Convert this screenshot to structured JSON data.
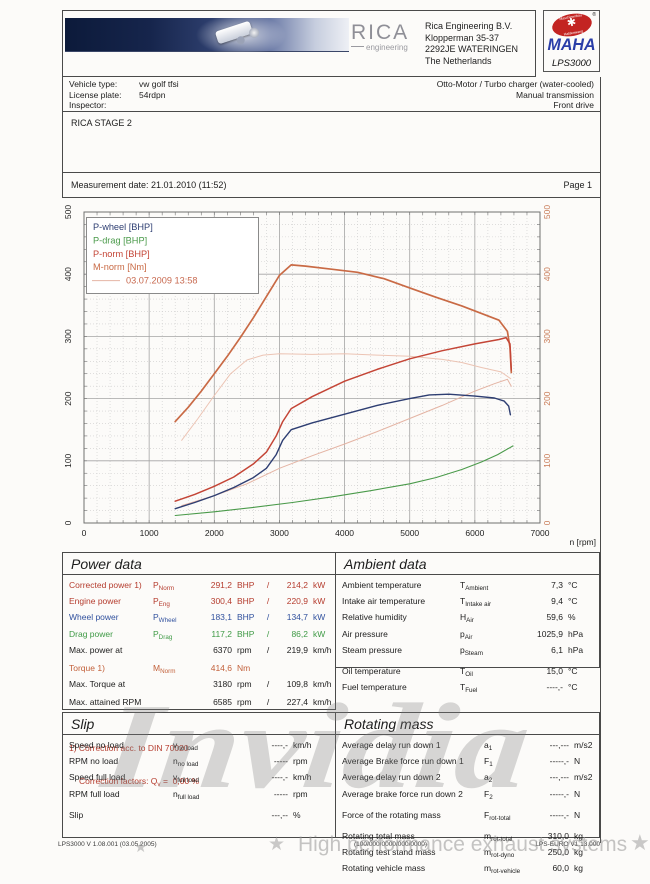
{
  "header": {
    "logo_text": "RICA",
    "logo_sub": "engineering",
    "address_lines": [
      "Rica Engineering B.V.",
      "Klopperman 35-37",
      "2292JE WATERINGEN",
      "The Netherlands"
    ],
    "maha": {
      "brand": "MAHA",
      "model": "LPS3000",
      "seal_top": "Maschinenbau",
      "seal_bottom": "Haldenwang",
      "gear_icon": "gear",
      "registered": "®"
    }
  },
  "vehicle": {
    "fields": [
      {
        "label": "Vehicle type:",
        "value": "vw golf tfsi"
      },
      {
        "label": "License plate:",
        "value": "54rdpn"
      },
      {
        "label": "Inspector:",
        "value": ""
      }
    ],
    "right_lines": [
      "Otto-Motor / Turbo charger (water-cooled)",
      "Manual transmission",
      "Front drive"
    ]
  },
  "stage": "RICA STAGE 2",
  "measurement": {
    "label": "Measurement date: 21.01.2010 (11:52)",
    "page": "Page 1"
  },
  "chart_data": {
    "type": "line",
    "title": "",
    "xlabel": "n [rpm]",
    "xlim": [
      0,
      7000
    ],
    "ylim": [
      0,
      500
    ],
    "x_ticks": [
      0,
      1000,
      2000,
      3000,
      4000,
      5000,
      6000,
      7000
    ],
    "y_ticks": [
      0,
      100,
      200,
      300,
      400,
      500
    ],
    "grid": "on",
    "legend_position": "top-left",
    "right_axis_color": "#c87a56",
    "legend": [
      {
        "label": "P-wheel [BHP]",
        "color": "#2e3e72"
      },
      {
        "label": "P-drag [BHP]",
        "color": "#4a9a4a"
      },
      {
        "label": "P-norm [BHP]",
        "color": "#c44536"
      },
      {
        "label": "M-norm [Nm]",
        "color": "#c96a45"
      },
      {
        "label": "03.07.2009 13:58",
        "color": "#e4b4a4",
        "text_color": "#c86a50",
        "swatch": true
      }
    ],
    "series": [
      {
        "name": "M-norm 03.07.2009 [Nm]",
        "color": "#ecc4b4",
        "width": 1,
        "points": [
          [
            1500,
            133
          ],
          [
            1750,
            168
          ],
          [
            2000,
            205
          ],
          [
            2250,
            240
          ],
          [
            2500,
            262
          ],
          [
            2750,
            270
          ],
          [
            3000,
            272
          ],
          [
            3500,
            271
          ],
          [
            4000,
            272
          ],
          [
            4500,
            270
          ],
          [
            5000,
            268
          ],
          [
            5500,
            263
          ],
          [
            5800,
            258
          ],
          [
            6100,
            250
          ],
          [
            6400,
            243
          ],
          [
            6550,
            232
          ]
        ]
      },
      {
        "name": "P-norm 03.07.2009 [BHP]",
        "color": "#e4b4a4",
        "width": 1,
        "points": [
          [
            1500,
            28
          ],
          [
            2000,
            44
          ],
          [
            2500,
            63
          ],
          [
            3000,
            88
          ],
          [
            3500,
            108
          ],
          [
            4000,
            127
          ],
          [
            4500,
            147
          ],
          [
            5000,
            168
          ],
          [
            5500,
            189
          ],
          [
            6000,
            212
          ],
          [
            6300,
            224
          ],
          [
            6500,
            231
          ],
          [
            6560,
            220
          ]
        ]
      },
      {
        "name": "P-drag [BHP]",
        "color": "#4a9a4a",
        "width": 1.1,
        "points": [
          [
            1400,
            12
          ],
          [
            2000,
            18
          ],
          [
            2600,
            25
          ],
          [
            3200,
            33
          ],
          [
            3800,
            42
          ],
          [
            4400,
            52
          ],
          [
            5000,
            63
          ],
          [
            5400,
            73
          ],
          [
            5800,
            86
          ],
          [
            6100,
            98
          ],
          [
            6350,
            110
          ],
          [
            6585,
            124
          ]
        ]
      },
      {
        "name": "P-wheel [BHP]",
        "color": "#2e3e72",
        "width": 1.4,
        "points": [
          [
            1400,
            23
          ],
          [
            1700,
            33
          ],
          [
            2000,
            44
          ],
          [
            2300,
            57
          ],
          [
            2600,
            73
          ],
          [
            2800,
            88
          ],
          [
            2950,
            110
          ],
          [
            3050,
            133
          ],
          [
            3180,
            150
          ],
          [
            3500,
            161
          ],
          [
            4000,
            175
          ],
          [
            4500,
            189
          ],
          [
            5000,
            200
          ],
          [
            5300,
            206
          ],
          [
            5600,
            207
          ],
          [
            6000,
            204
          ],
          [
            6300,
            201
          ],
          [
            6450,
            196
          ],
          [
            6520,
            188
          ],
          [
            6545,
            174
          ]
        ]
      },
      {
        "name": "M-norm [Nm]",
        "color": "#c96a45",
        "width": 1.7,
        "points": [
          [
            1400,
            163
          ],
          [
            1600,
            186
          ],
          [
            1800,
            212
          ],
          [
            2000,
            240
          ],
          [
            2200,
            268
          ],
          [
            2400,
            298
          ],
          [
            2600,
            330
          ],
          [
            2800,
            364
          ],
          [
            3000,
            398
          ],
          [
            3180,
            415
          ],
          [
            3400,
            413
          ],
          [
            3800,
            408
          ],
          [
            4200,
            403
          ],
          [
            4600,
            393
          ],
          [
            5000,
            378
          ],
          [
            5400,
            363
          ],
          [
            5800,
            349
          ],
          [
            6200,
            333
          ],
          [
            6370,
            326
          ],
          [
            6500,
            308
          ],
          [
            6540,
            282
          ],
          [
            6560,
            242
          ]
        ]
      },
      {
        "name": "P-norm [BHP]",
        "color": "#c44536",
        "width": 1.5,
        "points": [
          [
            1400,
            35
          ],
          [
            1700,
            46
          ],
          [
            2000,
            59
          ],
          [
            2300,
            74
          ],
          [
            2600,
            95
          ],
          [
            2800,
            114
          ],
          [
            2950,
            140
          ],
          [
            3050,
            163
          ],
          [
            3180,
            184
          ],
          [
            3500,
            203
          ],
          [
            4000,
            228
          ],
          [
            4500,
            247
          ],
          [
            5000,
            264
          ],
          [
            5500,
            277
          ],
          [
            6000,
            288
          ],
          [
            6370,
            295
          ],
          [
            6480,
            298
          ],
          [
            6540,
            288
          ],
          [
            6560,
            246
          ]
        ]
      }
    ]
  },
  "power_data": {
    "title": "Power data",
    "rows": [
      {
        "label": "Corrected power 1)",
        "sym": "P",
        "sub": "Norm",
        "v1": "291,2",
        "u1": "BHP",
        "sep": "/",
        "v2": "214,2",
        "u2": "kW",
        "color": "red"
      },
      {
        "label": "Engine power",
        "sym": "P",
        "sub": "Eng",
        "v1": "300,4",
        "u1": "BHP",
        "sep": "/",
        "v2": "220,9",
        "u2": "kW",
        "color": "red"
      },
      {
        "label": "Wheel power",
        "sym": "P",
        "sub": "Wheel",
        "v1": "183,1",
        "u1": "BHP",
        "sep": "/",
        "v2": "134,7",
        "u2": "kW",
        "color": "blue"
      },
      {
        "label": "Drag power",
        "sym": "P",
        "sub": "Drag",
        "v1": "117,2",
        "u1": "BHP",
        "sep": "/",
        "v2": "86,2",
        "u2": "kW",
        "color": "green"
      },
      {
        "label": "Max. power at",
        "sym": "",
        "sub": "",
        "v1": "6370",
        "u1": "rpm",
        "sep": "/",
        "v2": "219,9",
        "u2": "km/h",
        "color": "black"
      },
      {
        "label": "Torque 1)",
        "sym": "M",
        "sub": "Norm",
        "v1": "414,6",
        "u1": "Nm",
        "sep": "",
        "v2": "",
        "u2": "",
        "color": "orange",
        "gap": true
      },
      {
        "label": "Max. Torque at",
        "sym": "",
        "sub": "",
        "v1": "3180",
        "u1": "rpm",
        "sep": "/",
        "v2": "109,8",
        "u2": "km/h",
        "color": "black"
      },
      {
        "label": "Max. attained RPM",
        "sym": "",
        "sub": "",
        "v1": "6585",
        "u1": "rpm",
        "sep": "/",
        "v2": "227,4",
        "u2": "km/h",
        "color": "black",
        "gap": true
      }
    ],
    "foot1": "1) Correction acc. to DIN 70020",
    "foot2_pre": "Correction factors: Q",
    "foot2_sub": "v",
    "foot2_post": " =  0,00 %"
  },
  "ambient_data": {
    "title": "Ambient data",
    "rows": [
      {
        "label": "Ambient temperature",
        "sym": "T",
        "sub": "Ambient",
        "value": "7,3",
        "unit": "°C"
      },
      {
        "label": "Intake air temperature",
        "sym": "T",
        "sub": "Intake air",
        "value": "9,4",
        "unit": "°C"
      },
      {
        "label": "Relative humidity",
        "sym": "H",
        "sub": "Air",
        "value": "59,6",
        "unit": "%"
      },
      {
        "label": "Air pressure",
        "sym": "p",
        "sub": "Air",
        "value": "1025,9",
        "unit": "hPa"
      },
      {
        "label": "Steam pressure",
        "sym": "p",
        "sub": "Steam",
        "value": "6,1",
        "unit": "hPa"
      },
      {
        "label": "Oil temperature",
        "sym": "T",
        "sub": "Oil",
        "value": "15,0",
        "unit": "°C",
        "gap": true
      },
      {
        "label": "Fuel temperature",
        "sym": "T",
        "sub": "Fuel",
        "value": "----,-",
        "unit": "°C"
      }
    ]
  },
  "slip": {
    "title": "Slip",
    "rows": [
      {
        "label": "Speed no load",
        "sym": "v",
        "sub": "no load",
        "value": "----,-",
        "unit": "km/h"
      },
      {
        "label": "RPM no load",
        "sym": "n",
        "sub": "no load",
        "value": "-----",
        "unit": "rpm"
      },
      {
        "label": "Speed full load",
        "sym": "v",
        "sub": "full load",
        "value": "----,-",
        "unit": "km/h"
      },
      {
        "label": "RPM full load",
        "sym": "n",
        "sub": "full load",
        "value": "-----",
        "unit": "rpm"
      },
      {
        "label": "Slip",
        "sym": "",
        "sub": "",
        "value": "---,--",
        "unit": "%",
        "gap": true
      }
    ]
  },
  "rotating_mass": {
    "title": "Rotating mass",
    "rows": [
      {
        "label": "Average delay run down 1",
        "sym": "a",
        "sub": "1",
        "value": "---,---",
        "unit": "m/s2"
      },
      {
        "label": "Average Brake force run down 1",
        "sym": "F",
        "sub": "1",
        "value": "-----,-",
        "unit": "N"
      },
      {
        "label": "Average delay run down 2",
        "sym": "a",
        "sub": "2",
        "value": "---,---",
        "unit": "m/s2"
      },
      {
        "label": "Average brake force run down 2",
        "sym": "F",
        "sub": "2",
        "value": "-----,-",
        "unit": "N"
      },
      {
        "label": "Force of the rotating mass",
        "sym": "F",
        "sub": "rot-total",
        "value": "-----,-",
        "unit": "N",
        "gap": true
      },
      {
        "label": "Rotating total mass",
        "sym": "m",
        "sub": "rot-total",
        "value": "310,0",
        "unit": "kg",
        "gap": true
      },
      {
        "label": "Rotating test stand mass",
        "sym": "m",
        "sub": "rot-dyno",
        "value": "250,0",
        "unit": "kg"
      },
      {
        "label": "Rotating vehicle mass",
        "sym": "m",
        "sub": "rot-vehicle",
        "value": "60,0",
        "unit": "kg"
      }
    ]
  },
  "footer": {
    "left": "LPS3000 V 1.08.001 (03.05.2005)",
    "center": "(100/000/0000/000/0000)",
    "right": "LPS-EURO V1.13.000"
  },
  "watermark": {
    "title": "Invidia",
    "subtitle": "High performance exhaust systems",
    "star_icon": "★"
  }
}
